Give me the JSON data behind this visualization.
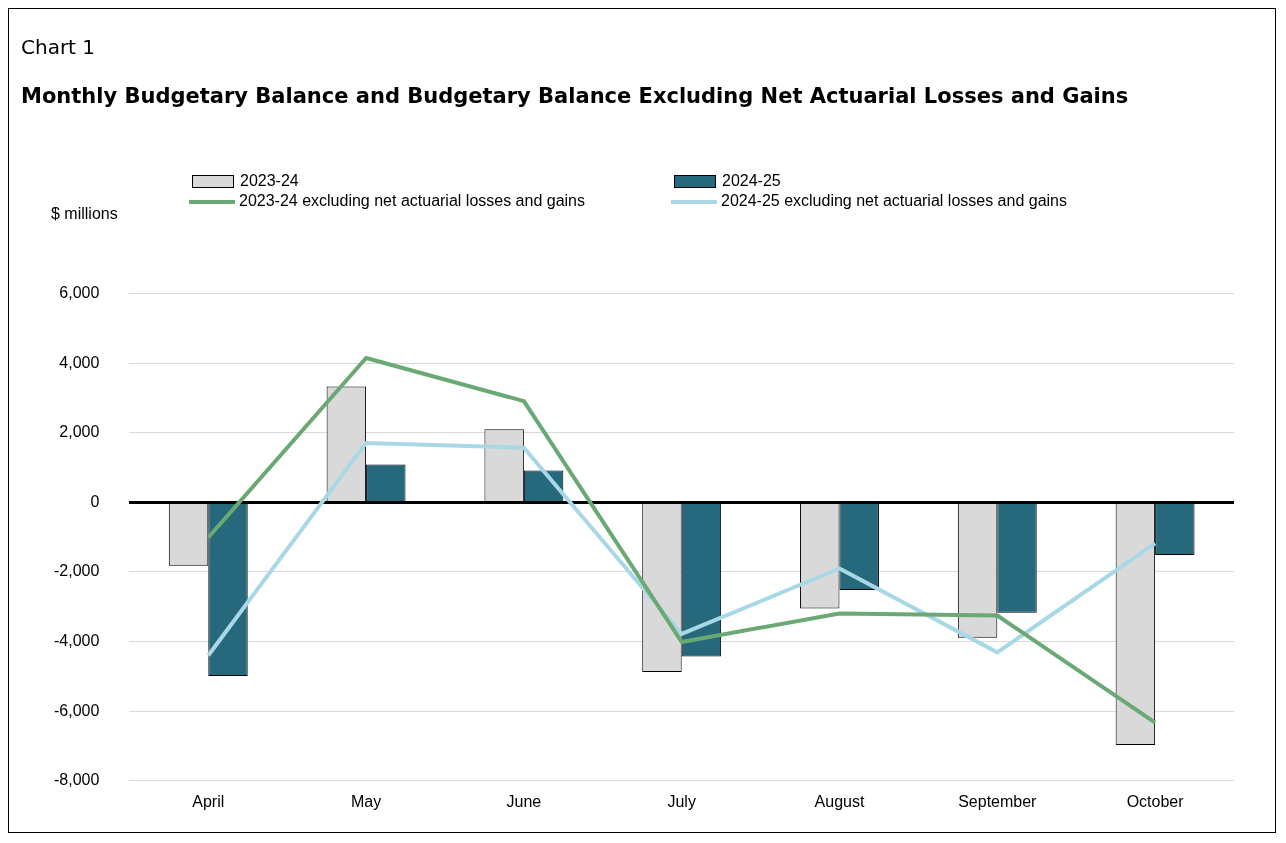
{
  "chart_data": {
    "type": "bar",
    "title": "Monthly Budgetary Balance and Budgetary Balance Excluding Net Actuarial Losses and Gains",
    "annotations": [
      "Chart 1"
    ],
    "ylabel": "$ millions",
    "categories": [
      "April",
      "May",
      "June",
      "July",
      "August",
      "September",
      "October"
    ],
    "series": [
      {
        "name": "2023-24",
        "color": "#d9d9d9",
        "values": [
          -1820,
          3330,
          2100,
          -4870,
          -3050,
          -3890,
          -6970
        ]
      },
      {
        "name": "2024-25",
        "color": "#26687c",
        "values": [
          -4990,
          1090,
          920,
          -4430,
          -2520,
          -3170,
          -1510
        ]
      },
      {
        "name": "2023-24 excluding net actuarial losses and gains",
        "type": "line",
        "color": "#6aa874",
        "values": [
          -1010,
          4150,
          2910,
          -4010,
          -3190,
          -3250,
          -6330
        ]
      },
      {
        "name": "2024-25 excluding net actuarial losses and gains",
        "type": "line",
        "color": "#a8d8e6",
        "values": [
          -4400,
          1710,
          1570,
          -3780,
          -1900,
          -4310,
          -1180
        ]
      }
    ],
    "ylim": [
      -8000,
      6000
    ],
    "yticks": [
      {
        "value": -8000,
        "label": "-8,000"
      },
      {
        "value": -6000,
        "label": "-6,000"
      },
      {
        "value": -4000,
        "label": "-4,000"
      },
      {
        "value": -2000,
        "label": "-2,000"
      },
      {
        "value": 0,
        "label": "0"
      },
      {
        "value": 2000,
        "label": "2,000"
      },
      {
        "value": 4000,
        "label": "4,000"
      },
      {
        "value": 6000,
        "label": "6,000"
      }
    ],
    "grid": "y",
    "legend": "top",
    "marker": "none"
  }
}
